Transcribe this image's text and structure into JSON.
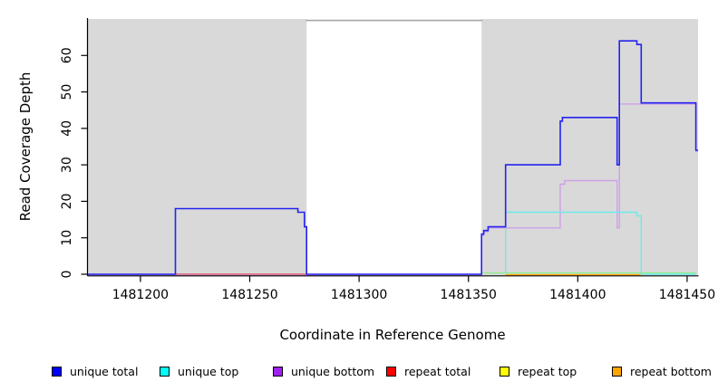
{
  "chart_data": {
    "type": "line",
    "title": "",
    "xlabel": "Coordinate in Reference Genome",
    "ylabel": "Read Coverage Depth",
    "xlim": [
      1481176,
      1481455
    ],
    "ylim": [
      0,
      70
    ],
    "xticks": [
      1481200,
      1481250,
      1481300,
      1481350,
      1481400,
      1481450
    ],
    "yticks": [
      0,
      10,
      20,
      30,
      40,
      50,
      60
    ],
    "grid": "off",
    "legend_position": "bottom",
    "background_regions": [
      {
        "name": "left-shaded-region",
        "x0": 1481176,
        "x1": 1481276,
        "color": "#d9d9d9"
      },
      {
        "name": "right-shaded-region",
        "x0": 1481356,
        "x1": 1481455,
        "color": "#d9d9d9"
      }
    ],
    "gap_top_line": {
      "x0": 1481276,
      "x1": 1481356,
      "y": 69.6,
      "color": "#a6a6a6"
    },
    "series": [
      {
        "name": "unique total",
        "legend_color": "#0000ff",
        "line_color": "#2323f0",
        "points": [
          [
            1481176,
            0
          ],
          [
            1481216,
            0
          ],
          [
            1481216,
            18
          ],
          [
            1481272,
            18
          ],
          [
            1481272,
            17
          ],
          [
            1481275,
            17
          ],
          [
            1481275,
            13
          ],
          [
            1481276,
            13
          ],
          [
            1481276,
            0
          ],
          [
            1481356,
            0
          ],
          [
            1481356,
            11
          ],
          [
            1481357,
            11
          ],
          [
            1481357,
            12
          ],
          [
            1481359,
            12
          ],
          [
            1481359,
            13
          ],
          [
            1481367,
            13
          ],
          [
            1481367,
            30
          ],
          [
            1481392,
            30
          ],
          [
            1481392,
            42
          ],
          [
            1481393,
            42
          ],
          [
            1481393,
            43
          ],
          [
            1481418,
            43
          ],
          [
            1481418,
            30
          ],
          [
            1481419,
            30
          ],
          [
            1481419,
            64
          ],
          [
            1481427,
            64
          ],
          [
            1481427,
            63
          ],
          [
            1481429,
            63
          ],
          [
            1481429,
            47
          ],
          [
            1481454,
            47
          ],
          [
            1481454,
            34
          ],
          [
            1481455,
            34
          ]
        ]
      },
      {
        "name": "unique top",
        "legend_color": "#00ffff",
        "line_color": "#6ceaea",
        "points": [
          [
            1481367,
            0
          ],
          [
            1481367,
            17
          ],
          [
            1481427,
            17
          ],
          [
            1481427,
            16
          ],
          [
            1481429,
            16
          ],
          [
            1481429,
            0
          ],
          [
            1481454,
            0
          ]
        ]
      },
      {
        "name": "unique bottom",
        "legend_color": "#a020f0",
        "line_color": "#cfa0e8",
        "points": [
          [
            1481176,
            0
          ],
          [
            1481356,
            0
          ],
          [
            1481356,
            11
          ],
          [
            1481357,
            11
          ],
          [
            1481357,
            12
          ],
          [
            1481359,
            12
          ],
          [
            1481359,
            13
          ],
          [
            1481392,
            13
          ],
          [
            1481392,
            25
          ],
          [
            1481394,
            25
          ],
          [
            1481394,
            26
          ],
          [
            1481418,
            26
          ],
          [
            1481418,
            13
          ],
          [
            1481419,
            13
          ],
          [
            1481419,
            47
          ],
          [
            1481454,
            47
          ],
          [
            1481454,
            34
          ],
          [
            1481455,
            34
          ]
        ]
      },
      {
        "name": "repeat total",
        "legend_color": "#ff0000",
        "line_color": "#dd5566",
        "points": [
          [
            1481216,
            0
          ],
          [
            1481276,
            0
          ]
        ]
      },
      {
        "name": "repeat top",
        "legend_color": "#ffff00",
        "line_color": "#90ee90",
        "points": [
          [
            1481356,
            0
          ],
          [
            1481454,
            0
          ]
        ]
      },
      {
        "name": "repeat bottom",
        "legend_color": "#ffa500",
        "line_color": "#ffa500",
        "points": [
          [
            1481367,
            0
          ],
          [
            1481429,
            0
          ]
        ]
      }
    ]
  },
  "legend": {
    "items": [
      {
        "label": "unique total",
        "color": "#0000ff"
      },
      {
        "label": "unique top",
        "color": "#00ffff"
      },
      {
        "label": "unique bottom",
        "color": "#a020f0"
      },
      {
        "label": "repeat total",
        "color": "#ff0000"
      },
      {
        "label": "repeat top",
        "color": "#ffff00"
      },
      {
        "label": "repeat bottom",
        "color": "#ffa500"
      }
    ]
  }
}
